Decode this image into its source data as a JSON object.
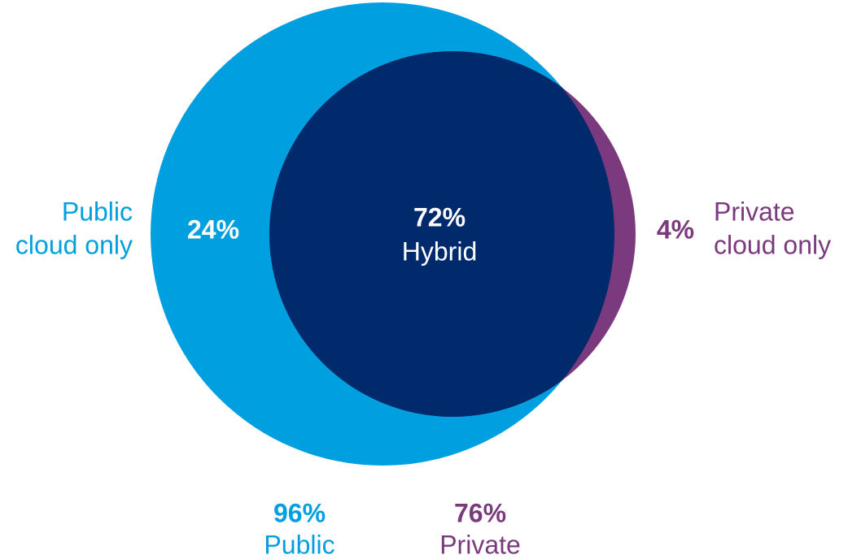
{
  "chart_data": {
    "type": "venn",
    "sets": [
      {
        "name": "Public",
        "value": 96,
        "value_label": "96%",
        "color": "#009fdf"
      },
      {
        "name": "Private",
        "value": 76,
        "value_label": "76%",
        "color": "#7b3a7e"
      }
    ],
    "categories": [
      [
        "Public",
        "cloud only"
      ],
      [
        "Hybrid"
      ],
      [
        "Private",
        "cloud only"
      ]
    ],
    "values": [
      24,
      72,
      4
    ],
    "value_labels": [
      "24%",
      "72%",
      "4%"
    ],
    "overlap_color": "#002a6c"
  }
}
